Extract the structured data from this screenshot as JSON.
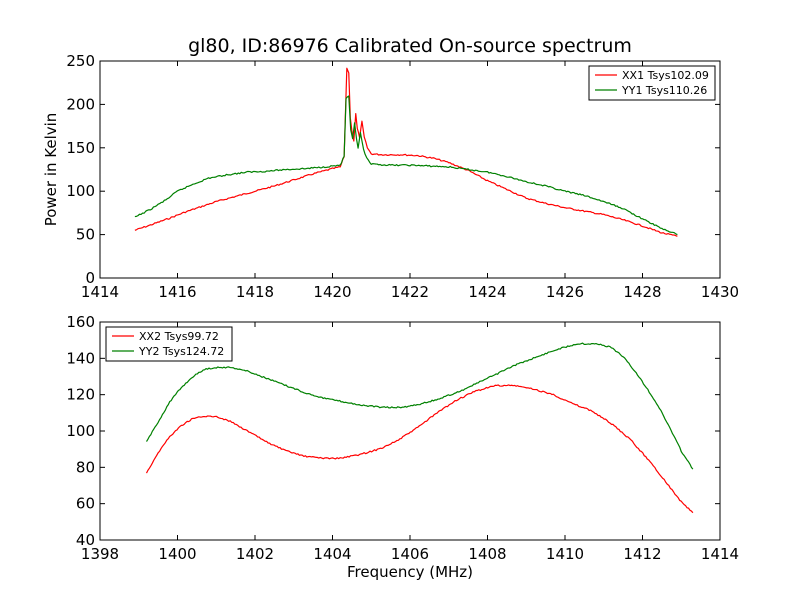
{
  "chart_data": [
    {
      "type": "line",
      "title": "gl80, ID:86976 Calibrated On-source spectrum",
      "ylabel": "Power in Kelvin",
      "xlabel": "",
      "xlim": [
        1414,
        1430
      ],
      "ylim": [
        0,
        250
      ],
      "xticks": [
        "1414",
        "1416",
        "1418",
        "1420",
        "1422",
        "1424",
        "1426",
        "1428",
        "1430"
      ],
      "yticks": [
        "0",
        "50",
        "100",
        "150",
        "200",
        "250"
      ],
      "legend_position": "top-right",
      "grid": false,
      "series": [
        {
          "name": "XX1 Tsys102.09",
          "color": "#ff0000",
          "points": [
            [
              1414.9,
              55
            ],
            [
              1415.3,
              61
            ],
            [
              1415.8,
              69
            ],
            [
              1416.2,
              76
            ],
            [
              1416.6,
              82
            ],
            [
              1417.0,
              88
            ],
            [
              1417.5,
              94
            ],
            [
              1418.0,
              100
            ],
            [
              1418.5,
              106
            ],
            [
              1419.0,
              113
            ],
            [
              1419.5,
              120
            ],
            [
              1420.0,
              126
            ],
            [
              1420.2,
              128
            ],
            [
              1420.3,
              140
            ],
            [
              1420.37,
              242
            ],
            [
              1420.42,
              236
            ],
            [
              1420.46,
              185
            ],
            [
              1420.5,
              170
            ],
            [
              1420.55,
              158
            ],
            [
              1420.6,
              189
            ],
            [
              1420.64,
              172
            ],
            [
              1420.7,
              162
            ],
            [
              1420.76,
              180
            ],
            [
              1420.82,
              162
            ],
            [
              1420.9,
              150
            ],
            [
              1421.0,
              143
            ],
            [
              1421.3,
              142
            ],
            [
              1421.8,
              142
            ],
            [
              1422.2,
              141
            ],
            [
              1422.6,
              138
            ],
            [
              1423.0,
              133
            ],
            [
              1423.5,
              124
            ],
            [
              1424.0,
              112
            ],
            [
              1424.5,
              102
            ],
            [
              1425.0,
              92
            ],
            [
              1425.5,
              86
            ],
            [
              1426.0,
              81
            ],
            [
              1426.5,
              77
            ],
            [
              1427.0,
              73
            ],
            [
              1427.5,
              67
            ],
            [
              1428.0,
              60
            ],
            [
              1428.5,
              52
            ],
            [
              1428.9,
              48
            ]
          ]
        },
        {
          "name": "YY1 Tsys110.26",
          "color": "#008000",
          "points": [
            [
              1414.9,
              70
            ],
            [
              1415.3,
              79
            ],
            [
              1415.7,
              90
            ],
            [
              1416.0,
              100
            ],
            [
              1416.4,
              108
            ],
            [
              1416.8,
              115
            ],
            [
              1417.3,
              119
            ],
            [
              1417.8,
              122
            ],
            [
              1418.3,
              123
            ],
            [
              1418.8,
              125
            ],
            [
              1419.3,
              126
            ],
            [
              1419.8,
              128
            ],
            [
              1420.2,
              130
            ],
            [
              1420.3,
              140
            ],
            [
              1420.35,
              207
            ],
            [
              1420.42,
              209
            ],
            [
              1420.47,
              170
            ],
            [
              1420.52,
              160
            ],
            [
              1420.57,
              178
            ],
            [
              1420.62,
              160
            ],
            [
              1420.66,
              150
            ],
            [
              1420.72,
              167
            ],
            [
              1420.8,
              148
            ],
            [
              1420.88,
              138
            ],
            [
              1421.0,
              131
            ],
            [
              1421.5,
              130
            ],
            [
              1422.0,
              130
            ],
            [
              1422.5,
              129
            ],
            [
              1423.0,
              128
            ],
            [
              1423.5,
              125
            ],
            [
              1424.0,
              122
            ],
            [
              1424.5,
              117
            ],
            [
              1425.0,
              111
            ],
            [
              1425.5,
              106
            ],
            [
              1426.0,
              100
            ],
            [
              1426.5,
              95
            ],
            [
              1427.0,
              88
            ],
            [
              1427.5,
              80
            ],
            [
              1428.0,
              68
            ],
            [
              1428.5,
              57
            ],
            [
              1428.9,
              50
            ]
          ]
        }
      ]
    },
    {
      "type": "line",
      "title": "",
      "ylabel": "",
      "xlabel": "Frequency (MHz)",
      "xlim": [
        1398,
        1414
      ],
      "ylim": [
        40,
        160
      ],
      "xticks": [
        "1398",
        "1400",
        "1402",
        "1404",
        "1406",
        "1408",
        "1410",
        "1412",
        "1414"
      ],
      "yticks": [
        "40",
        "60",
        "80",
        "100",
        "120",
        "140",
        "160"
      ],
      "legend_position": "top-left",
      "grid": false,
      "series": [
        {
          "name": "XX2 Tsys99.72",
          "color": "#ff0000",
          "points": [
            [
              1399.2,
              77
            ],
            [
              1399.5,
              88
            ],
            [
              1399.8,
              97
            ],
            [
              1400.1,
              103
            ],
            [
              1400.4,
              107
            ],
            [
              1400.7,
              108
            ],
            [
              1401.0,
              108
            ],
            [
              1401.4,
              105
            ],
            [
              1401.8,
              100
            ],
            [
              1402.3,
              94
            ],
            [
              1402.8,
              89
            ],
            [
              1403.3,
              86
            ],
            [
              1403.8,
              85
            ],
            [
              1404.2,
              85
            ],
            [
              1404.7,
              87
            ],
            [
              1405.2,
              90
            ],
            [
              1405.7,
              95
            ],
            [
              1406.2,
              102
            ],
            [
              1406.7,
              110
            ],
            [
              1407.2,
              117
            ],
            [
              1407.7,
              122
            ],
            [
              1408.2,
              125
            ],
            [
              1408.7,
              125
            ],
            [
              1409.2,
              123
            ],
            [
              1409.7,
              120
            ],
            [
              1410.2,
              115
            ],
            [
              1410.7,
              111
            ],
            [
              1411.2,
              104
            ],
            [
              1411.7,
              95
            ],
            [
              1412.2,
              83
            ],
            [
              1412.6,
              72
            ],
            [
              1413.0,
              61
            ],
            [
              1413.3,
              55
            ]
          ]
        },
        {
          "name": "YY2 Tsys124.72",
          "color": "#008000",
          "points": [
            [
              1399.2,
              94
            ],
            [
              1399.5,
              105
            ],
            [
              1399.8,
              116
            ],
            [
              1400.1,
              124
            ],
            [
              1400.4,
              130
            ],
            [
              1400.7,
              134
            ],
            [
              1401.0,
              135
            ],
            [
              1401.4,
              135
            ],
            [
              1401.8,
              133
            ],
            [
              1402.3,
              129
            ],
            [
              1402.8,
              125
            ],
            [
              1403.3,
              121
            ],
            [
              1403.8,
              118
            ],
            [
              1404.3,
              116
            ],
            [
              1404.8,
              114
            ],
            [
              1405.3,
              113
            ],
            [
              1405.8,
              113
            ],
            [
              1406.3,
              115
            ],
            [
              1406.8,
              118
            ],
            [
              1407.3,
              122
            ],
            [
              1407.8,
              127
            ],
            [
              1408.3,
              132
            ],
            [
              1408.8,
              137
            ],
            [
              1409.3,
              141
            ],
            [
              1409.8,
              145
            ],
            [
              1410.3,
              148
            ],
            [
              1410.8,
              148
            ],
            [
              1411.2,
              146
            ],
            [
              1411.5,
              141
            ],
            [
              1411.8,
              133
            ],
            [
              1412.1,
              124
            ],
            [
              1412.4,
              114
            ],
            [
              1412.7,
              102
            ],
            [
              1413.0,
              89
            ],
            [
              1413.3,
              79
            ]
          ]
        }
      ]
    }
  ]
}
